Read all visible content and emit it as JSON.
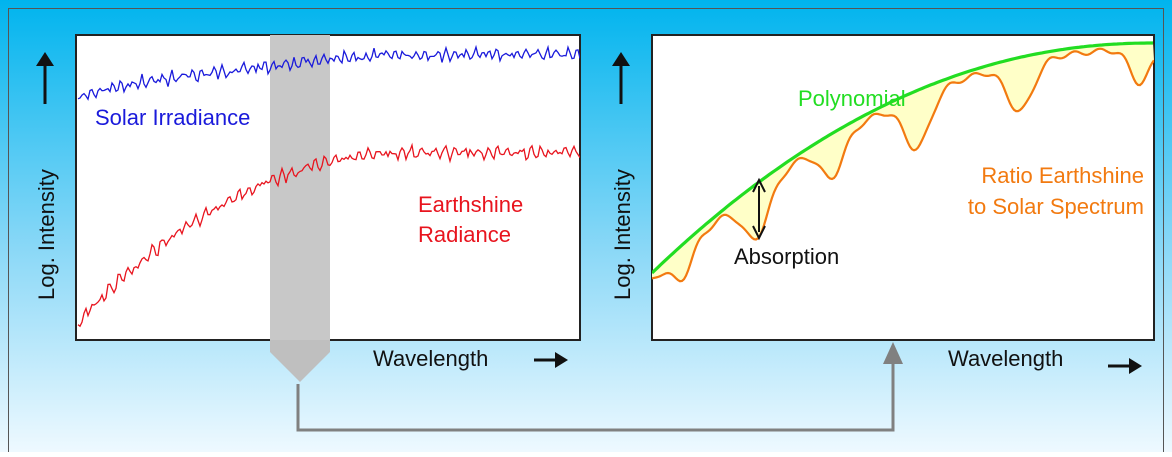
{
  "left_panel": {
    "y_axis_label": "Log. Intensity",
    "x_axis_label": "Wavelength",
    "solar_label": "Solar Irradiance",
    "earthshine_label_line1": "Earthshine",
    "earthshine_label_line2": "Radiance"
  },
  "right_panel": {
    "y_axis_label": "Log. Intensity",
    "x_axis_label": "Wavelength",
    "polynomial_label": "Polynomial",
    "ratio_label_line1": "Ratio Earthshine",
    "ratio_label_line2": "to Solar Spectrum",
    "absorption_label": "Absorption"
  },
  "colors": {
    "solar": "#1a1adb",
    "earthshine": "#e8141e",
    "polynomial": "#22dd22",
    "ratio": "#f27a10",
    "fill": "#ffffc8",
    "window": "#c8c8c8",
    "connector": "#808080",
    "bg_top": "#00b4ee",
    "bg_bottom": "#e8f8ff"
  },
  "icons": {
    "up_arrow": "arrow-up-icon",
    "right_arrow": "arrow-right-icon",
    "double_arrow": "double-arrow-icon"
  }
}
